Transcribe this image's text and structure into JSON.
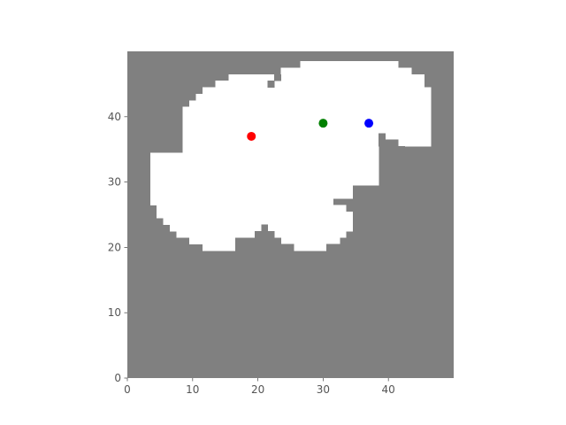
{
  "chart_data": {
    "type": "heatmap",
    "title": "",
    "xlabel": "",
    "ylabel": "",
    "xlim": [
      0,
      50
    ],
    "ylim": [
      0,
      50
    ],
    "x_ticks": [
      {
        "value": 0,
        "label": "0"
      },
      {
        "value": 10,
        "label": "10"
      },
      {
        "value": 20,
        "label": "20"
      },
      {
        "value": 30,
        "label": "30"
      },
      {
        "value": 40,
        "label": "40"
      }
    ],
    "y_ticks": [
      {
        "value": 0,
        "label": "0"
      },
      {
        "value": 10,
        "label": "10"
      },
      {
        "value": 20,
        "label": "20"
      },
      {
        "value": 30,
        "label": "30"
      },
      {
        "value": 40,
        "label": "40"
      }
    ],
    "grid": false,
    "colors": {
      "obstacle": "#808080",
      "free": "#ffffff"
    },
    "free_runs": [
      {
        "y": 48,
        "x_start": 27,
        "x_end": 41
      },
      {
        "y": 47,
        "x_start": 24,
        "x_end": 43
      },
      {
        "y": 46,
        "x_start": 16,
        "x_end": 45
      },
      {
        "y": 45,
        "x_start": 14,
        "x_end": 45
      },
      {
        "y": 44,
        "x_start": 12,
        "x_end": 46
      },
      {
        "y": 43,
        "x_start": 11,
        "x_end": 46
      },
      {
        "y": 42,
        "x_start": 10,
        "x_end": 46
      },
      {
        "y": 41,
        "x_start": 9,
        "x_end": 46
      },
      {
        "y": 40,
        "x_start": 9,
        "x_end": 46
      },
      {
        "y": 39,
        "x_start": 9,
        "x_end": 46
      },
      {
        "y": 38,
        "x_start": 9,
        "x_end": 46
      },
      {
        "y": 37,
        "x_start": 9,
        "x_end": 46
      },
      {
        "y": 36,
        "x_start": 9,
        "x_end": 46
      },
      {
        "y": 35,
        "x_start": 9,
        "x_end": 38
      },
      {
        "y": 34,
        "x_start": 4,
        "x_end": 38
      },
      {
        "y": 33,
        "x_start": 4,
        "x_end": 38
      },
      {
        "y": 32,
        "x_start": 4,
        "x_end": 38
      },
      {
        "y": 31,
        "x_start": 4,
        "x_end": 38
      },
      {
        "y": 30,
        "x_start": 4,
        "x_end": 38
      },
      {
        "y": 29,
        "x_start": 4,
        "x_end": 34
      },
      {
        "y": 28,
        "x_start": 4,
        "x_end": 34
      },
      {
        "y": 27,
        "x_start": 4,
        "x_end": 31
      },
      {
        "y": 26,
        "x_start": 5,
        "x_end": 33
      },
      {
        "y": 25,
        "x_start": 5,
        "x_end": 34
      },
      {
        "y": 24,
        "x_start": 6,
        "x_end": 34
      },
      {
        "y": 23,
        "x_start": 7,
        "x_end": 34
      },
      {
        "y": 22,
        "x_start": 8,
        "x_end": 33
      },
      {
        "y": 21,
        "x_start": 10,
        "x_end": 16
      },
      {
        "y": 21,
        "x_start": 24,
        "x_end": 32
      },
      {
        "y": 20,
        "x_start": 12,
        "x_end": 16
      },
      {
        "y": 20,
        "x_start": 26,
        "x_end": 30
      }
    ],
    "obstacle_patches": [
      {
        "y": 46,
        "x_start": 23,
        "x_end": 23
      },
      {
        "y": 45,
        "x_start": 22,
        "x_end": 22
      },
      {
        "y": 37,
        "x_start": 39,
        "x_end": 39
      },
      {
        "y": 36,
        "x_start": 39,
        "x_end": 41
      },
      {
        "y": 35,
        "x_start": 40,
        "x_end": 42
      },
      {
        "y": 23,
        "x_start": 21,
        "x_end": 21
      },
      {
        "y": 22,
        "x_start": 20,
        "x_end": 22
      },
      {
        "y": 21,
        "x_start": 19,
        "x_end": 23
      },
      {
        "y": 20,
        "x_start": 17,
        "x_end": 25
      },
      {
        "y": 20,
        "x_start": 31,
        "x_end": 33
      }
    ],
    "points": [
      {
        "name": "red",
        "x": 19,
        "y": 37,
        "color": "#ff0000"
      },
      {
        "name": "green",
        "x": 30,
        "y": 39,
        "color": "#008000"
      },
      {
        "name": "blue",
        "x": 37,
        "y": 39,
        "color": "#0000ff"
      }
    ]
  }
}
